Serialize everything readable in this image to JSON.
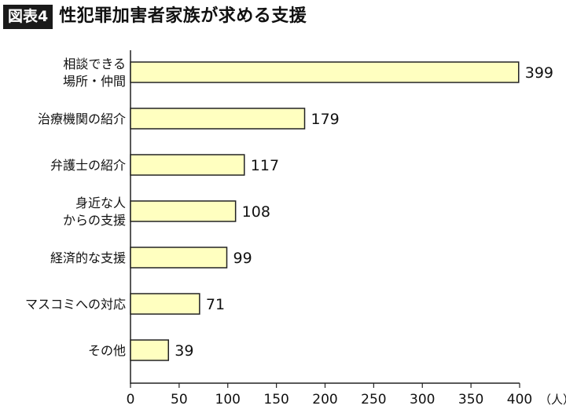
{
  "header": {
    "badge": "図表4",
    "title": "性犯罪加害者家族が求める支援"
  },
  "chart_data": {
    "type": "bar",
    "orientation": "horizontal",
    "categories": [
      [
        "相談できる",
        "場所・仲間"
      ],
      [
        "治療機関の紹介"
      ],
      [
        "弁護士の紹介"
      ],
      [
        "身近な人",
        "からの支援"
      ],
      [
        "経済的な支援"
      ],
      [
        "マスコミへの対応"
      ],
      [
        "その他"
      ]
    ],
    "values": [
      399,
      179,
      117,
      108,
      99,
      71,
      39
    ],
    "value_labels": [
      "399",
      "179",
      "117",
      "108",
      "99",
      "71",
      "39"
    ],
    "xlim": [
      0,
      400
    ],
    "xticks": [
      0,
      50,
      100,
      150,
      200,
      250,
      300,
      350,
      400
    ],
    "xtick_labels": [
      "0",
      "50",
      "100",
      "150",
      "200",
      "250",
      "300",
      "350",
      "400"
    ],
    "x_unit": "（人）",
    "grid": false,
    "colors": {
      "bar_fill": "#ffffc0",
      "bar_stroke": "#222222",
      "axis": "#222222"
    }
  }
}
